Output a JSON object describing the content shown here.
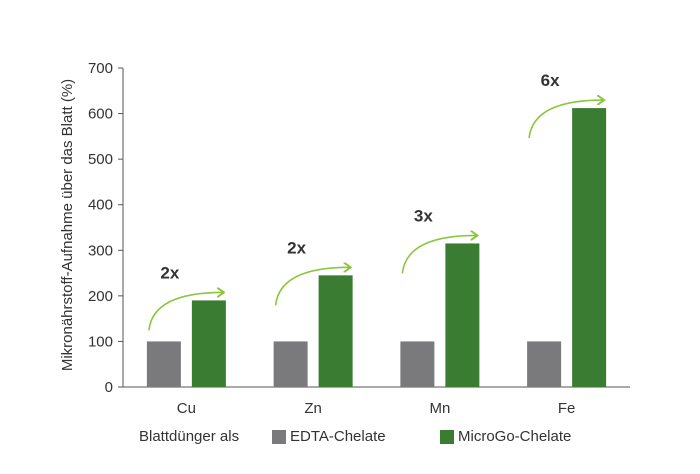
{
  "chart_data": {
    "type": "bar",
    "categories": [
      "Cu",
      "Zn",
      "Mn",
      "Fe"
    ],
    "series": [
      {
        "name": "EDTA-Chelate",
        "values": [
          100,
          100,
          100,
          100
        ],
        "color": "#7a7a7c"
      },
      {
        "name": "MicroGo-Chelate",
        "values": [
          190,
          245,
          315,
          612
        ],
        "color": "#3a7d32"
      }
    ],
    "annotations": [
      "2x",
      "2x",
      "3x",
      "6x"
    ],
    "ylabel": "Mikronährstoff-Aufnahme über das Blatt (%)",
    "xlabel": "",
    "ylim": [
      0,
      700
    ],
    "yticks": [
      0,
      100,
      200,
      300,
      400,
      500,
      600,
      700
    ],
    "legend_prefix": "Blattdünger als",
    "legend_position": "bottom",
    "grid": false,
    "arrow_color": "#8cc63f"
  }
}
